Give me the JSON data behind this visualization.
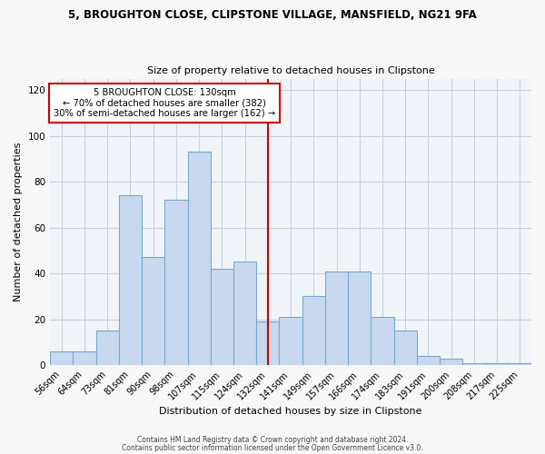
{
  "title1": "5, BROUGHTON CLOSE, CLIPSTONE VILLAGE, MANSFIELD, NG21 9FA",
  "title2": "Size of property relative to detached houses in Clipstone",
  "xlabel": "Distribution of detached houses by size in Clipstone",
  "ylabel": "Number of detached properties",
  "bar_labels": [
    "56sqm",
    "64sqm",
    "73sqm",
    "81sqm",
    "90sqm",
    "98sqm",
    "107sqm",
    "115sqm",
    "124sqm",
    "132sqm",
    "141sqm",
    "149sqm",
    "157sqm",
    "166sqm",
    "174sqm",
    "183sqm",
    "191sqm",
    "200sqm",
    "208sqm",
    "217sqm",
    "225sqm"
  ],
  "bar_values": [
    6,
    6,
    15,
    74,
    47,
    72,
    93,
    42,
    45,
    19,
    21,
    30,
    41,
    41,
    21,
    15,
    4,
    3,
    1,
    1,
    1
  ],
  "bar_color": "#c8d8ee",
  "bar_edge_color": "#7aaace",
  "vline_x_idx": 9,
  "vline_color": "#cc0000",
  "annotation_title": "5 BROUGHTON CLOSE: 130sqm",
  "annotation_line1": "← 70% of detached houses are smaller (382)",
  "annotation_line2": "30% of semi-detached houses are larger (162) →",
  "annotation_box_color": "#ffffff",
  "annotation_box_edge": "#cc0000",
  "ylim": [
    0,
    125
  ],
  "yticks": [
    0,
    20,
    40,
    60,
    80,
    100,
    120
  ],
  "footnote1": "Contains HM Land Registry data © Crown copyright and database right 2024.",
  "footnote2": "Contains public sector information licensed under the Open Government Licence v3.0.",
  "bg_color": "#f7f7f7",
  "plot_bg_color": "#f0f4f8",
  "grid_color": "#c8d0d8"
}
